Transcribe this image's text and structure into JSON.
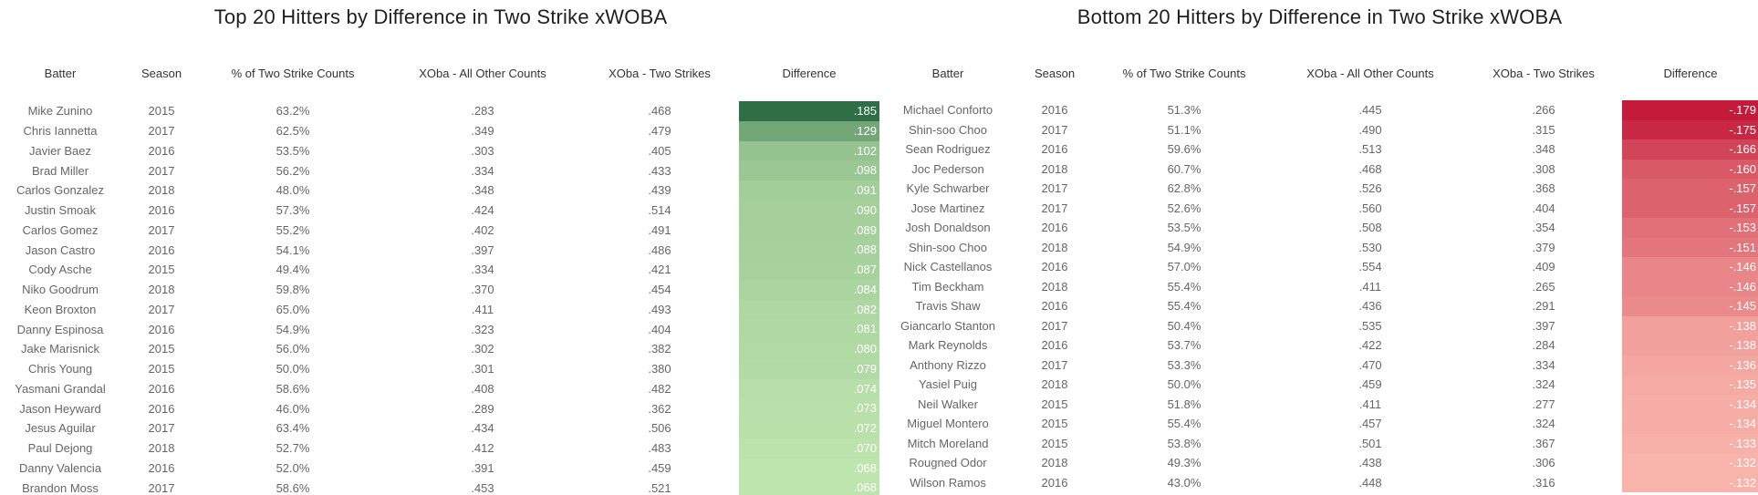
{
  "chart_data": [
    {
      "type": "table",
      "title": "Top 20 Hitters by Difference in Two Strike xWOBA",
      "columns": [
        "Batter",
        "Season",
        "% of Two Strike Counts",
        "XOba - All Other Counts",
        "XOba - Two Strikes",
        "Difference"
      ],
      "rows": [
        [
          "Mike Zunino",
          "2015",
          "63.2%",
          ".283",
          ".468",
          ".185"
        ],
        [
          "Chris Iannetta",
          "2017",
          "62.5%",
          ".349",
          ".479",
          ".129"
        ],
        [
          "Javier Baez",
          "2016",
          "53.5%",
          ".303",
          ".405",
          ".102"
        ],
        [
          "Brad Miller",
          "2017",
          "56.2%",
          ".334",
          ".433",
          ".098"
        ],
        [
          "Carlos Gonzalez",
          "2018",
          "48.0%",
          ".348",
          ".439",
          ".091"
        ],
        [
          "Justin Smoak",
          "2016",
          "57.3%",
          ".424",
          ".514",
          ".090"
        ],
        [
          "Carlos Gomez",
          "2017",
          "55.2%",
          ".402",
          ".491",
          ".089"
        ],
        [
          "Jason Castro",
          "2016",
          "54.1%",
          ".397",
          ".486",
          ".088"
        ],
        [
          "Cody Asche",
          "2015",
          "49.4%",
          ".334",
          ".421",
          ".087"
        ],
        [
          "Niko Goodrum",
          "2018",
          "59.8%",
          ".370",
          ".454",
          ".084"
        ],
        [
          "Keon Broxton",
          "2017",
          "65.0%",
          ".411",
          ".493",
          ".082"
        ],
        [
          "Danny Espinosa",
          "2016",
          "54.9%",
          ".323",
          ".404",
          ".081"
        ],
        [
          "Jake Marisnick",
          "2015",
          "56.0%",
          ".302",
          ".382",
          ".080"
        ],
        [
          "Chris Young",
          "2015",
          "50.0%",
          ".301",
          ".380",
          ".079"
        ],
        [
          "Yasmani Grandal",
          "2016",
          "58.6%",
          ".408",
          ".482",
          ".074"
        ],
        [
          "Jason Heyward",
          "2016",
          "46.0%",
          ".289",
          ".362",
          ".073"
        ],
        [
          "Jesus Aguilar",
          "2017",
          "63.4%",
          ".434",
          ".506",
          ".072"
        ],
        [
          "Paul Dejong",
          "2018",
          "52.7%",
          ".412",
          ".483",
          ".070"
        ],
        [
          "Danny Valencia",
          "2016",
          "52.0%",
          ".391",
          ".459",
          ".068"
        ],
        [
          "Brandon Moss",
          "2017",
          "58.6%",
          ".453",
          ".521",
          ".068"
        ]
      ],
      "color_scale": {
        "low": "#bfe5ae",
        "high": "#2e6f45",
        "domain": [
          0.068,
          0.185
        ]
      }
    },
    {
      "type": "table",
      "title": "Bottom 20 Hitters by Difference in Two Strike xWOBA",
      "columns": [
        "Batter",
        "Season",
        "% of Two Strike Counts",
        "XOba - All Other Counts",
        "XOba - Two Strikes",
        "Difference"
      ],
      "rows": [
        [
          "Michael Conforto",
          "2016",
          "51.3%",
          ".445",
          ".266",
          "-.179"
        ],
        [
          "Shin-soo Choo",
          "2017",
          "51.1%",
          ".490",
          ".315",
          "-.175"
        ],
        [
          "Sean Rodriguez",
          "2016",
          "59.6%",
          ".513",
          ".348",
          "-.166"
        ],
        [
          "Joc Pederson",
          "2018",
          "60.7%",
          ".468",
          ".308",
          "-.160"
        ],
        [
          "Kyle Schwarber",
          "2017",
          "62.8%",
          ".526",
          ".368",
          "-.157"
        ],
        [
          "Jose Martinez",
          "2017",
          "52.6%",
          ".560",
          ".404",
          "-.157"
        ],
        [
          "Josh Donaldson",
          "2016",
          "53.5%",
          ".508",
          ".354",
          "-.153"
        ],
        [
          "Shin-soo Choo",
          "2018",
          "54.9%",
          ".530",
          ".379",
          "-.151"
        ],
        [
          "Nick Castellanos",
          "2016",
          "57.0%",
          ".554",
          ".409",
          "-.146"
        ],
        [
          "Tim Beckham",
          "2018",
          "55.4%",
          ".411",
          ".265",
          "-.146"
        ],
        [
          "Travis Shaw",
          "2016",
          "55.4%",
          ".436",
          ".291",
          "-.145"
        ],
        [
          "Giancarlo Stanton",
          "2017",
          "50.4%",
          ".535",
          ".397",
          "-.138"
        ],
        [
          "Mark Reynolds",
          "2016",
          "53.7%",
          ".422",
          ".284",
          "-.138"
        ],
        [
          "Anthony Rizzo",
          "2017",
          "53.3%",
          ".470",
          ".334",
          "-.136"
        ],
        [
          "Yasiel Puig",
          "2018",
          "50.0%",
          ".459",
          ".324",
          "-.135"
        ],
        [
          "Neil Walker",
          "2015",
          "51.8%",
          ".411",
          ".277",
          "-.134"
        ],
        [
          "Miguel Montero",
          "2015",
          "55.4%",
          ".457",
          ".324",
          "-.134"
        ],
        [
          "Mitch Moreland",
          "2015",
          "53.8%",
          ".501",
          ".367",
          "-.133"
        ],
        [
          "Rougned Odor",
          "2018",
          "49.3%",
          ".438",
          ".306",
          "-.132"
        ],
        [
          "Wilson Ramos",
          "2016",
          "43.0%",
          ".448",
          ".316",
          "-.132"
        ]
      ],
      "color_scale": {
        "low": "#f8b4aa",
        "high": "#c41b3a",
        "domain": [
          -0.132,
          -0.179
        ]
      }
    }
  ]
}
